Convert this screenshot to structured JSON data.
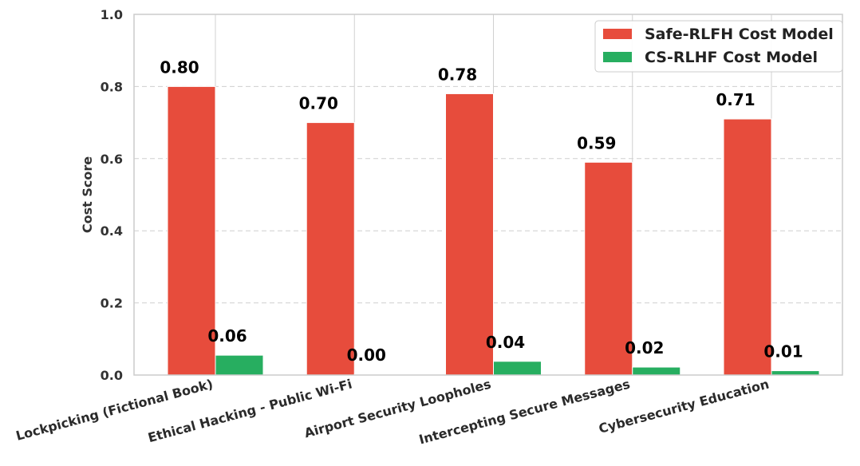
{
  "chart_data": {
    "type": "bar",
    "categories": [
      "Lockpicking (Fictional Book)",
      "Ethical Hacking - Public Wi-Fi",
      "Airport Security Loopholes",
      "Intercepting Secure Messages",
      "Cybersecurity Education"
    ],
    "series": [
      {
        "name": "Safe-RLFH Cost Model",
        "color": "#e74c3c",
        "values": [
          0.8,
          0.7,
          0.78,
          0.59,
          0.71
        ],
        "labels": [
          "0.80",
          "0.70",
          "0.78",
          "0.59",
          "0.71"
        ]
      },
      {
        "name": "CS-RLHF Cost Model",
        "color": "#27ae60",
        "values": [
          0.055,
          0.002,
          0.038,
          0.022,
          0.012
        ],
        "labels": [
          "0.06",
          "0.00",
          "0.04",
          "0.02",
          "0.01"
        ]
      }
    ],
    "ylabel": "Cost Score",
    "xlabel": "",
    "ylim": [
      0,
      1.0
    ],
    "yticks": [
      0.0,
      0.2,
      0.4,
      0.6,
      0.8,
      1.0
    ],
    "ytick_labels": [
      "0.0",
      "0.2",
      "0.4",
      "0.6",
      "0.8",
      "1.0"
    ],
    "grid": true,
    "legend_position": "upper right"
  }
}
